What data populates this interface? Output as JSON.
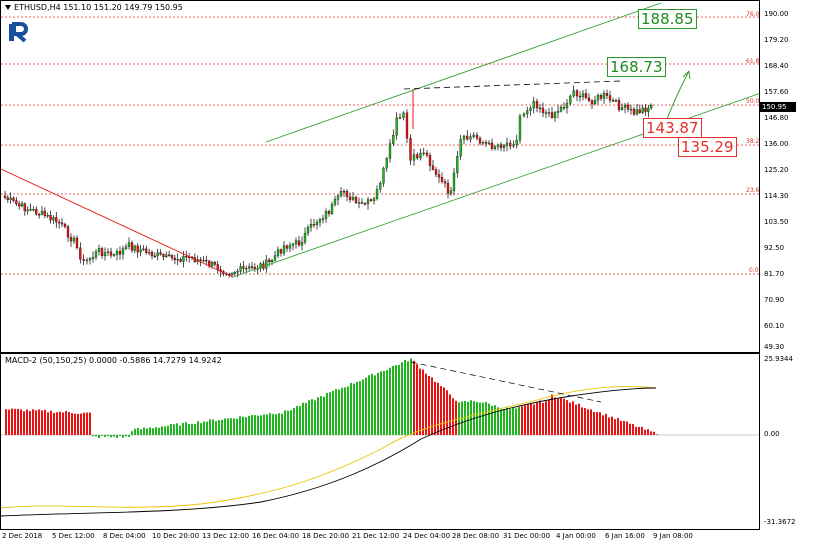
{
  "header": {
    "symbol_line": "ETHUSD,H4  151.10 151.20 149.79 150.95"
  },
  "macd": {
    "header": "MACD-2 (50,150,25) 0.0000 -0.5886 14.7279 14.9242",
    "axis_labels": [
      "25.9344",
      "0.00",
      "-31.3672"
    ]
  },
  "price_axis": {
    "labels": [
      "190.00",
      "179.20",
      "168.40",
      "157.60",
      "146.80",
      "136.00",
      "125.20",
      "114.30",
      "103.50",
      "92.50",
      "81.70",
      "70.90",
      "60.10",
      "49.30"
    ],
    "current_price": "150.95"
  },
  "fib_levels": [
    "76.0",
    "61.8",
    "50.0",
    "38.2",
    "23.6",
    "0.0"
  ],
  "levels": {
    "r2": "188.85",
    "r1": "168.73",
    "s1": "143.87",
    "s2": "135.29"
  },
  "time_axis": {
    "labels": [
      "2 Dec 2018",
      "5 Dec 12:00",
      "8 Dec 04:00",
      "10 Dec 20:00",
      "13 Dec 12:00",
      "16 Dec 04:00",
      "18 Dec 20:00",
      "21 Dec 12:00",
      "24 Dec 04:00",
      "28 Dec 08:00",
      "31 Dec 00:00",
      "4 Jan 00:00",
      "6 Jan 16:00",
      "9 Jan 08:00"
    ]
  },
  "colors": {
    "bull": "#22b522",
    "bear": "#e81414",
    "channel": "#33a033",
    "fib": "#e0302a",
    "signal": "#e8c400",
    "macd_line": "#000000"
  },
  "brand_icon": "roboforex-logo-icon"
}
